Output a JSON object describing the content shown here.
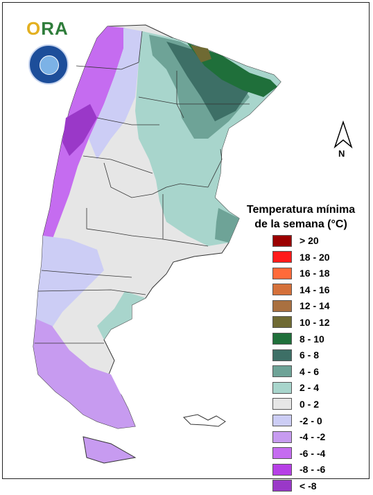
{
  "logo": {
    "text_o": "O",
    "text_ra": "RA"
  },
  "compass": {
    "north_label": "N"
  },
  "legend": {
    "title_line1": "Temperatura mínima",
    "title_line2": "de la semana (°C)",
    "items": [
      {
        "label": "> 20",
        "color": "#9b0000"
      },
      {
        "label": "18 - 20",
        "color": "#ff1a1a"
      },
      {
        "label": "16 - 18",
        "color": "#ff6a3a"
      },
      {
        "label": "14 - 16",
        "color": "#d4703a"
      },
      {
        "label": "12 - 14",
        "color": "#a97040"
      },
      {
        "label": "10 - 12",
        "color": "#6f6a33"
      },
      {
        "label": "8 - 10",
        "color": "#1f6f3a"
      },
      {
        "label": "6 - 8",
        "color": "#3d6f66"
      },
      {
        "label": "4 - 6",
        "color": "#6ea397"
      },
      {
        "label": "2 - 4",
        "color": "#a8d5cc"
      },
      {
        "label": "0 - 2",
        "color": "#e6e6e6"
      },
      {
        "label": "-2 - 0",
        "color": "#cccdf5"
      },
      {
        "label": "-4 - -2",
        "color": "#c79bf0"
      },
      {
        "label": "-6 - -4",
        "color": "#c56cf0"
      },
      {
        "label": "-8 - -6",
        "color": "#b640e6"
      },
      {
        "label": "< -8",
        "color": "#9a38c8"
      }
    ]
  }
}
